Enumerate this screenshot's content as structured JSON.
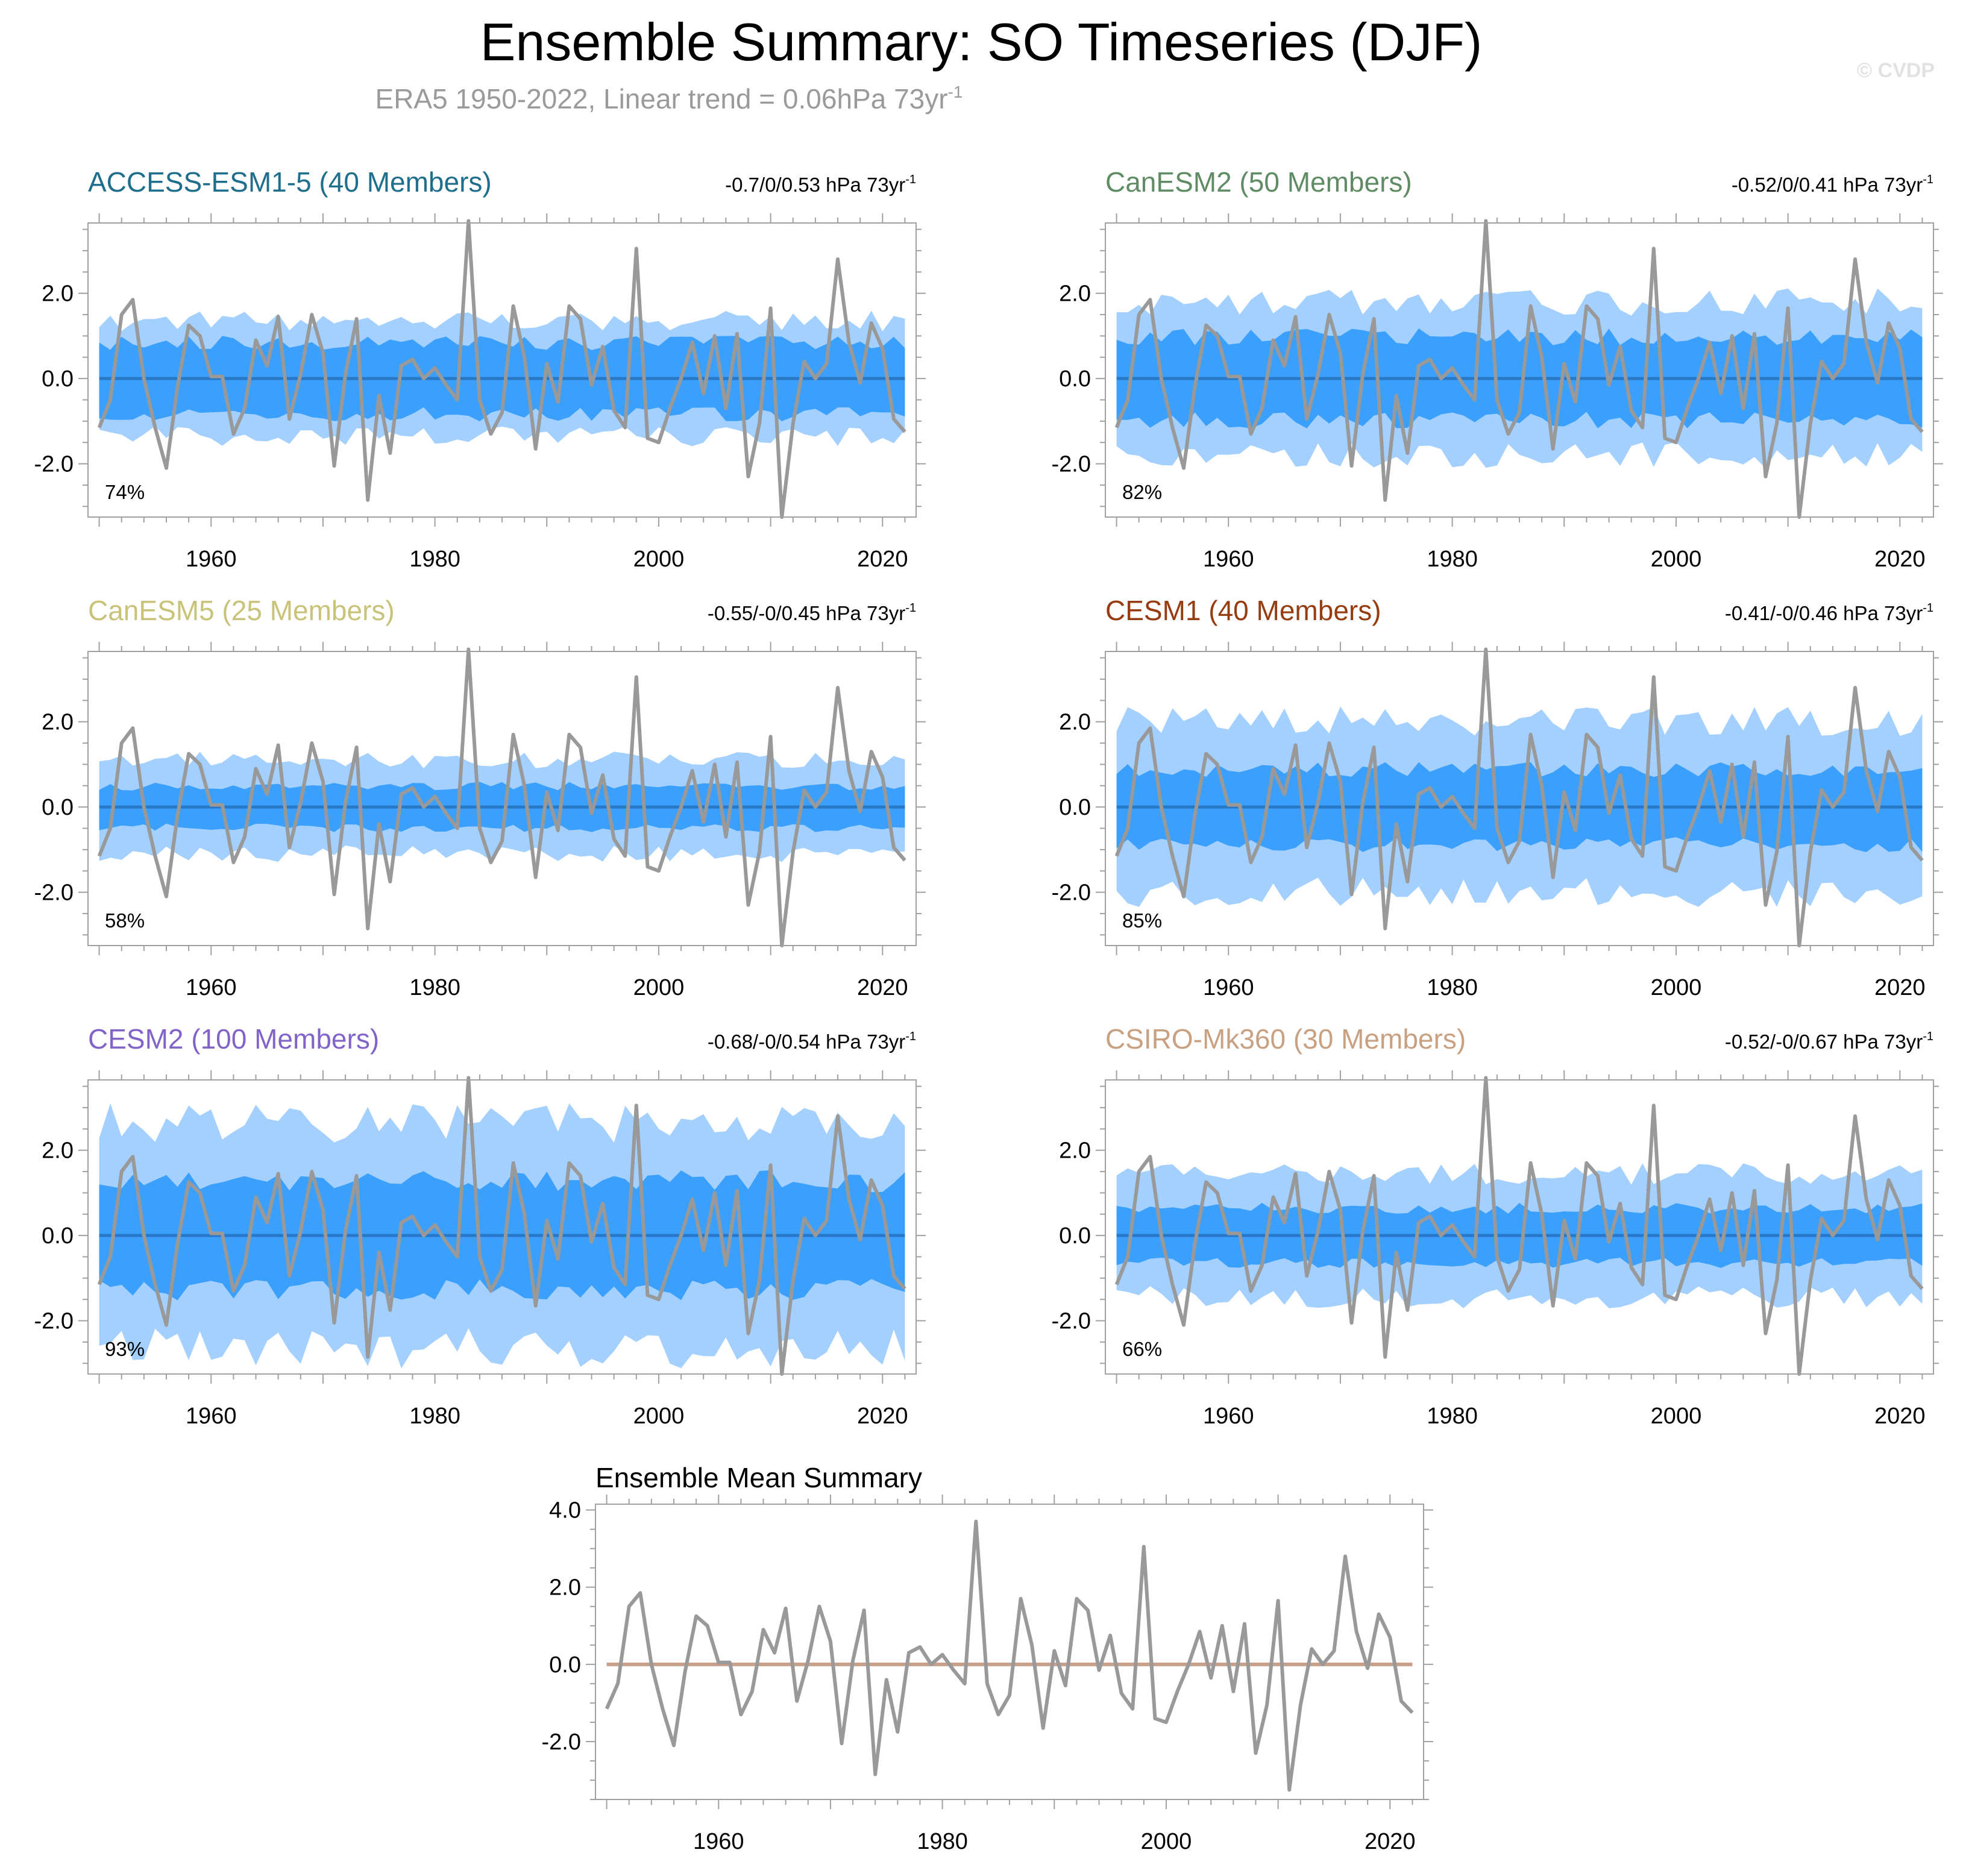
{
  "header": {
    "title": "Ensemble Summary: SO Timeseries (DJF)",
    "subtitle": "ERA5 1950-2022, Linear trend = 0.06hPa 73yr",
    "subtitle_sup": "-1",
    "copyright": "© CVDP"
  },
  "colors": {
    "outer_band": "#a3d0ff",
    "inner_band": "#3b9ffc",
    "ensemble_mean_line": "#2878c8",
    "observation_line": "#999999",
    "mean_summary_line": "#c8a08a",
    "frame": "#a0a0a0"
  },
  "chart_data": {
    "type": "line",
    "years": [
      1950,
      1951,
      1952,
      1953,
      1954,
      1955,
      1956,
      1957,
      1958,
      1959,
      1960,
      1961,
      1962,
      1963,
      1964,
      1965,
      1966,
      1967,
      1968,
      1969,
      1970,
      1971,
      1972,
      1973,
      1974,
      1975,
      1976,
      1977,
      1978,
      1979,
      1980,
      1981,
      1982,
      1983,
      1984,
      1985,
      1986,
      1987,
      1988,
      1989,
      1990,
      1991,
      1992,
      1993,
      1994,
      1995,
      1996,
      1997,
      1998,
      1999,
      2000,
      2001,
      2002,
      2003,
      2004,
      2005,
      2006,
      2007,
      2008,
      2009,
      2010,
      2011,
      2012,
      2013,
      2014,
      2015,
      2016,
      2017,
      2018,
      2019,
      2020,
      2021,
      2022
    ],
    "observed_era5": [
      -1.15,
      -0.5,
      1.5,
      1.85,
      0.0,
      -1.15,
      -2.1,
      -0.2,
      1.25,
      1.0,
      0.05,
      0.05,
      -1.3,
      -0.7,
      0.9,
      0.3,
      1.45,
      -0.95,
      0.1,
      1.5,
      0.6,
      -2.05,
      0.1,
      1.4,
      -2.85,
      -0.4,
      -1.75,
      0.3,
      0.45,
      0.0,
      0.25,
      -0.15,
      -0.5,
      3.7,
      -0.5,
      -1.3,
      -0.8,
      1.7,
      0.5,
      -1.65,
      0.35,
      -0.55,
      1.7,
      1.4,
      -0.15,
      0.75,
      -0.75,
      -1.15,
      3.05,
      -1.4,
      -1.5,
      -0.7,
      0.0,
      0.85,
      -0.35,
      1.0,
      -0.7,
      1.05,
      -2.3,
      -1.05,
      1.65,
      -3.25,
      -1.05,
      0.4,
      0.0,
      0.35,
      2.8,
      0.85,
      -0.1,
      1.3,
      0.7,
      -0.95,
      -1.25
    ],
    "xlim": [
      1949,
      2023
    ],
    "xticks": [
      1960,
      1980,
      2000,
      2020
    ],
    "xtick_labels": [
      "1960",
      "1980",
      "2000",
      "2020"
    ],
    "ylim": [
      -3.25,
      3.65
    ],
    "yticks": [
      -2,
      0,
      2
    ],
    "ytick_labels": [
      "-2.0",
      "0.0",
      "2.0"
    ],
    "panels": [
      {
        "name": "ACCESS-ESM1-5 (40 Members)",
        "color": "#1e6e8c",
        "range_text": "-0.7/0/0.53 hPa 73yr",
        "range_sup": "-1",
        "percent": "74%",
        "inner": 0.85,
        "outer": 1.35,
        "seed": 11
      },
      {
        "name": "CanESM2 (50 Members)",
        "color": "#5f8c64",
        "range_text": "-0.52/0/0.41 hPa 73yr",
        "range_sup": "-1",
        "percent": "82%",
        "inner": 1.0,
        "outer": 1.8,
        "seed": 23
      },
      {
        "name": "CanESM5 (25 Members)",
        "color": "#c8c378",
        "range_text": "-0.55/-0/0.45 hPa 73yr",
        "range_sup": "-1",
        "percent": "58%",
        "inner": 0.5,
        "outer": 1.1,
        "seed": 37
      },
      {
        "name": "CESM1 (40 Members)",
        "color": "#963c10",
        "range_text": "-0.41/-0/0.46 hPa 73yr",
        "range_sup": "-1",
        "percent": "85%",
        "inner": 0.9,
        "outer": 2.0,
        "seed": 41
      },
      {
        "name": "CESM2 (100 Members)",
        "color": "#8264c8",
        "range_text": "-0.68/-0/0.54 hPa 73yr",
        "range_sup": "-1",
        "percent": "93%",
        "inner": 1.3,
        "outer": 2.65,
        "seed": 53
      },
      {
        "name": "CSIRO-Mk360 (30 Members)",
        "color": "#c8a082",
        "range_text": "-0.52/-0/0.67 hPa 73yr",
        "range_sup": "-1",
        "percent": "66%",
        "inner": 0.65,
        "outer": 1.45,
        "seed": 67
      }
    ],
    "mean_summary": {
      "title": "Ensemble Mean Summary",
      "ylim": [
        -3.5,
        4.15
      ],
      "yticks": [
        -2,
        0,
        2,
        4
      ],
      "ytick_labels": [
        "-2.0",
        "0.0",
        "2.0",
        "4.0"
      ],
      "ensemble_mean_value": 0.0
    }
  }
}
